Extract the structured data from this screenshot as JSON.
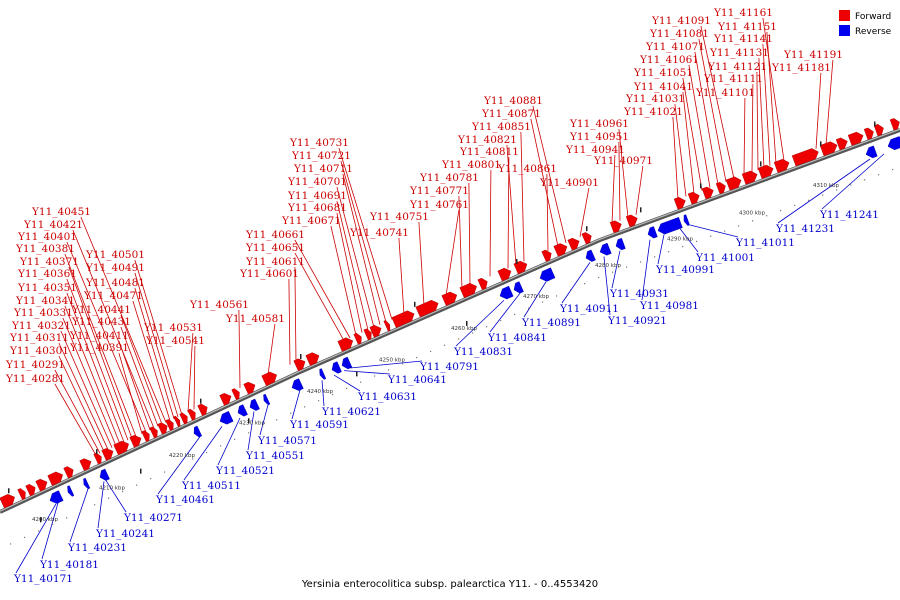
{
  "legend": {
    "forward_label": "Forward",
    "reverse_label": "Reverse",
    "forward_color": "#ee0000",
    "reverse_color": "#0000ee"
  },
  "caption": "Yersinia enterocolitica subsp. palearctica Y11. - 0..4553420",
  "scale_ticks": [
    "4200 kbp",
    "4210 kbp",
    "4220 kbp",
    "4230 kbp",
    "4240 kbp",
    "4250 kbp",
    "4260 kbp",
    "4270 kbp",
    "4280 kbp",
    "4290 kbp",
    "4300 kbp",
    "4310 kbp"
  ],
  "forward_genes": [
    "Y11_40281",
    "Y11_40291",
    "Y11_40301",
    "Y11_40311",
    "Y11_40321",
    "Y11_40331",
    "Y11_40341",
    "Y11_40351",
    "Y11_40361",
    "Y11_40371",
    "Y11_40381",
    "Y11_40391",
    "Y11_40401",
    "Y11_40411",
    "Y11_40421",
    "Y11_40431",
    "Y11_40441",
    "Y11_40451",
    "Y11_40471",
    "Y11_40481",
    "Y11_40491",
    "Y11_40501",
    "Y11_40531",
    "Y11_40541",
    "Y11_40561",
    "Y11_40581",
    "Y11_40601",
    "Y11_40611",
    "Y11_40651",
    "Y11_40661",
    "Y11_40671",
    "Y11_40681",
    "Y11_40691",
    "Y11_40701",
    "Y11_40711",
    "Y11_40721",
    "Y11_40731",
    "Y11_40741",
    "Y11_40751",
    "Y11_40761",
    "Y11_40771",
    "Y11_40781",
    "Y11_40801",
    "Y11_40811",
    "Y11_40821",
    "Y11_40851",
    "Y11_40861",
    "Y11_40871",
    "Y11_40881",
    "Y11_40901",
    "Y11_40941",
    "Y11_40951",
    "Y11_40961",
    "Y11_40971",
    "Y11_41021",
    "Y11_41031",
    "Y11_41041",
    "Y11_41051",
    "Y11_41061",
    "Y11_41071",
    "Y11_41081",
    "Y11_41091",
    "Y11_41101",
    "Y11_41111",
    "Y11_41121",
    "Y11_41131",
    "Y11_41141",
    "Y11_41151",
    "Y11_41161",
    "Y11_41181",
    "Y11_41191"
  ],
  "reverse_genes": [
    "Y11_40171",
    "Y11_40181",
    "Y11_40231",
    "Y11_40241",
    "Y11_40271",
    "Y11_40461",
    "Y11_40511",
    "Y11_40521",
    "Y11_40551",
    "Y11_40571",
    "Y11_40591",
    "Y11_40621",
    "Y11_40631",
    "Y11_40641",
    "Y11_40791",
    "Y11_40831",
    "Y11_40841",
    "Y11_40891",
    "Y11_40911",
    "Y11_40921",
    "Y11_40931",
    "Y11_40981",
    "Y11_40991",
    "Y11_41001",
    "Y11_41011",
    "Y11_41231",
    "Y11_41241"
  ]
}
